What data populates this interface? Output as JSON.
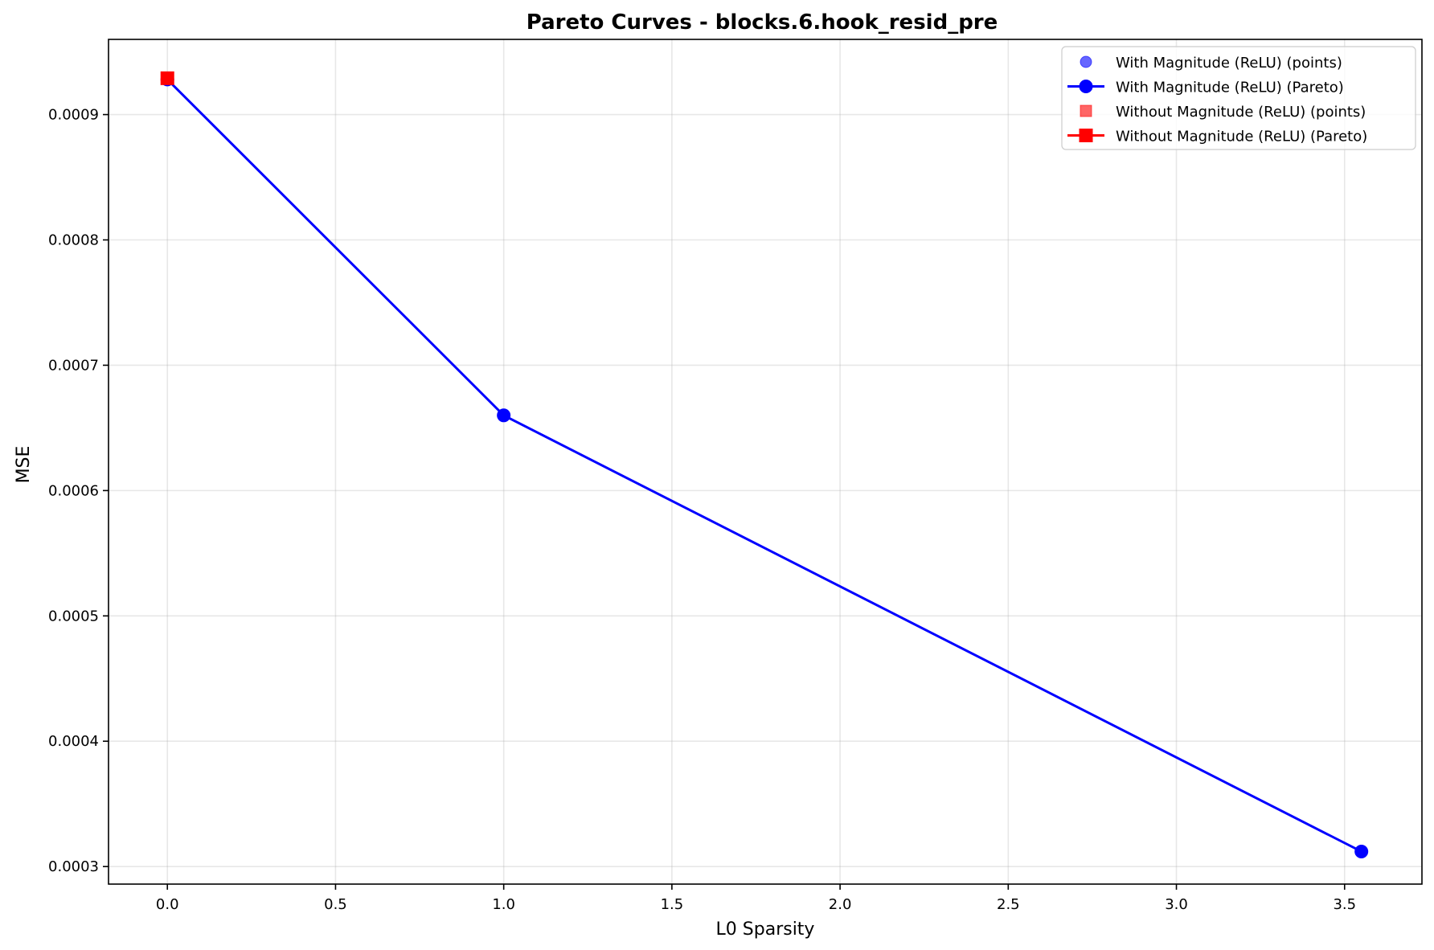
{
  "chart_data": {
    "type": "line",
    "title": "Pareto Curves - blocks.6.hook_resid_pre",
    "xlabel": "L0 Sparsity",
    "ylabel": "MSE",
    "xlim": [
      -0.175,
      3.73
    ],
    "ylim": [
      0.000286,
      0.00096
    ],
    "xticks": [
      0.0,
      0.5,
      1.0,
      1.5,
      2.0,
      2.5,
      3.0,
      3.5
    ],
    "xtick_labels": [
      "0.0",
      "0.5",
      "1.0",
      "1.5",
      "2.0",
      "2.5",
      "3.0",
      "3.5"
    ],
    "yticks": [
      0.0003,
      0.0004,
      0.0005,
      0.0006,
      0.0007,
      0.0008,
      0.0009
    ],
    "ytick_labels": [
      "0.0003",
      "0.0004",
      "0.0005",
      "0.0006",
      "0.0007",
      "0.0008",
      "0.0009"
    ],
    "grid": true,
    "legend_position": "top-right",
    "series": [
      {
        "name": "With Magnitude (ReLU) (points)",
        "kind": "scatter",
        "marker": "circle",
        "color": "#0000ff",
        "alpha": 0.6,
        "x": [
          0.0,
          1.0,
          3.55
        ],
        "y": [
          0.000928,
          0.00066,
          0.000312
        ]
      },
      {
        "name": "With Magnitude (ReLU) (Pareto)",
        "kind": "line",
        "marker": "circle",
        "color": "#0000ff",
        "x": [
          0.0,
          1.0,
          3.55
        ],
        "y": [
          0.000928,
          0.00066,
          0.000312
        ]
      },
      {
        "name": "Without Magnitude (ReLU) (points)",
        "kind": "scatter",
        "marker": "square",
        "color": "#ff0000",
        "alpha": 0.6,
        "x": [
          0.0
        ],
        "y": [
          0.000929
        ]
      },
      {
        "name": "Without Magnitude (ReLU) (Pareto)",
        "kind": "line",
        "marker": "square",
        "color": "#ff0000",
        "x": [
          0.0
        ],
        "y": [
          0.000929
        ]
      }
    ]
  }
}
